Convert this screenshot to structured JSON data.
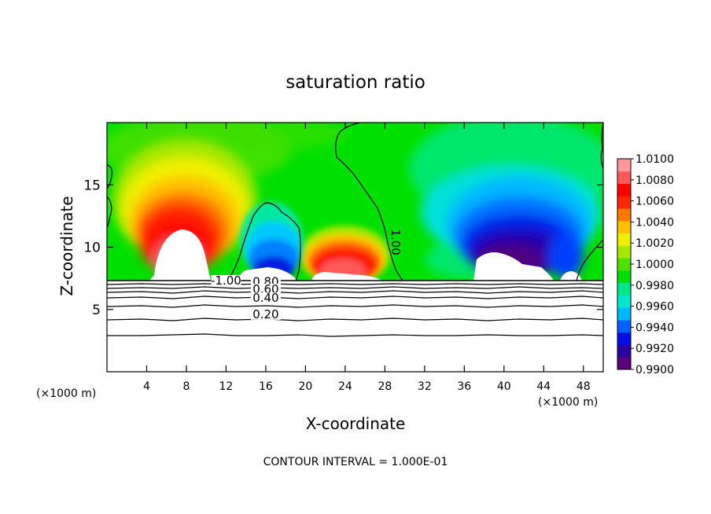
{
  "chart_data": {
    "type": "heatmap",
    "title": "saturation ratio",
    "xlabel": "X-coordinate",
    "ylabel": "Z-coordinate",
    "x_unit_left": "(×1000 m)",
    "x_unit_right": "(×1000 m)",
    "footer": "CONTOUR INTERVAL = 1.000E-01",
    "xlim": [
      0,
      50
    ],
    "ylim": [
      0,
      20
    ],
    "x_ticks": [
      4,
      8,
      12,
      16,
      20,
      24,
      28,
      32,
      36,
      40,
      44,
      48
    ],
    "x_tick_labels": [
      "4",
      "8",
      "12",
      "16",
      "20",
      "24",
      "28",
      "32",
      "36",
      "40",
      "44",
      "48"
    ],
    "y_ticks": [
      5,
      10,
      15
    ],
    "y_tick_labels": [
      "5",
      "10",
      "15"
    ],
    "colorbar": {
      "min": 0.99,
      "max": 1.01,
      "labels": [
        "1.0100",
        "1.0080",
        "1.0060",
        "1.0040",
        "1.0020",
        "1.0000",
        "0.9980",
        "0.9960",
        "0.9940",
        "0.9920",
        "0.9900"
      ],
      "colors": [
        "#5a0078",
        "#2a00a0",
        "#0010e0",
        "#0060ff",
        "#00b8ff",
        "#00e8d0",
        "#00e888",
        "#00e000",
        "#50e000",
        "#a8e800",
        "#f0f000",
        "#ffc000",
        "#ff7800",
        "#ff2800",
        "#ff0000",
        "#ff5858",
        "#ff9898"
      ]
    },
    "contour_labels": [
      {
        "text": "-1.00",
        "x": 12.0,
        "y": 7.0
      },
      {
        "text": "1.00",
        "x": 28.7,
        "y": 10.4
      },
      {
        "text": "0.80",
        "x": 16.0,
        "y": 6.9
      },
      {
        "text": "0.60",
        "x": 16.0,
        "y": 6.3
      },
      {
        "text": "0.40",
        "x": 16.0,
        "y": 5.6
      },
      {
        "text": "0.20",
        "x": 16.0,
        "y": 4.3
      }
    ],
    "features": [
      {
        "name": "supersaturated plume",
        "x_range": [
          2,
          12
        ],
        "peak": 1.01
      },
      {
        "name": "subsaturated plume",
        "x_range": [
          13,
          19
        ],
        "min": 0.992
      },
      {
        "name": "supersaturated plume",
        "x_range": [
          20,
          28
        ],
        "peak": 1.008
      },
      {
        "name": "subsaturated plume",
        "x_range": [
          36,
          48
        ],
        "min": 0.99
      }
    ]
  }
}
